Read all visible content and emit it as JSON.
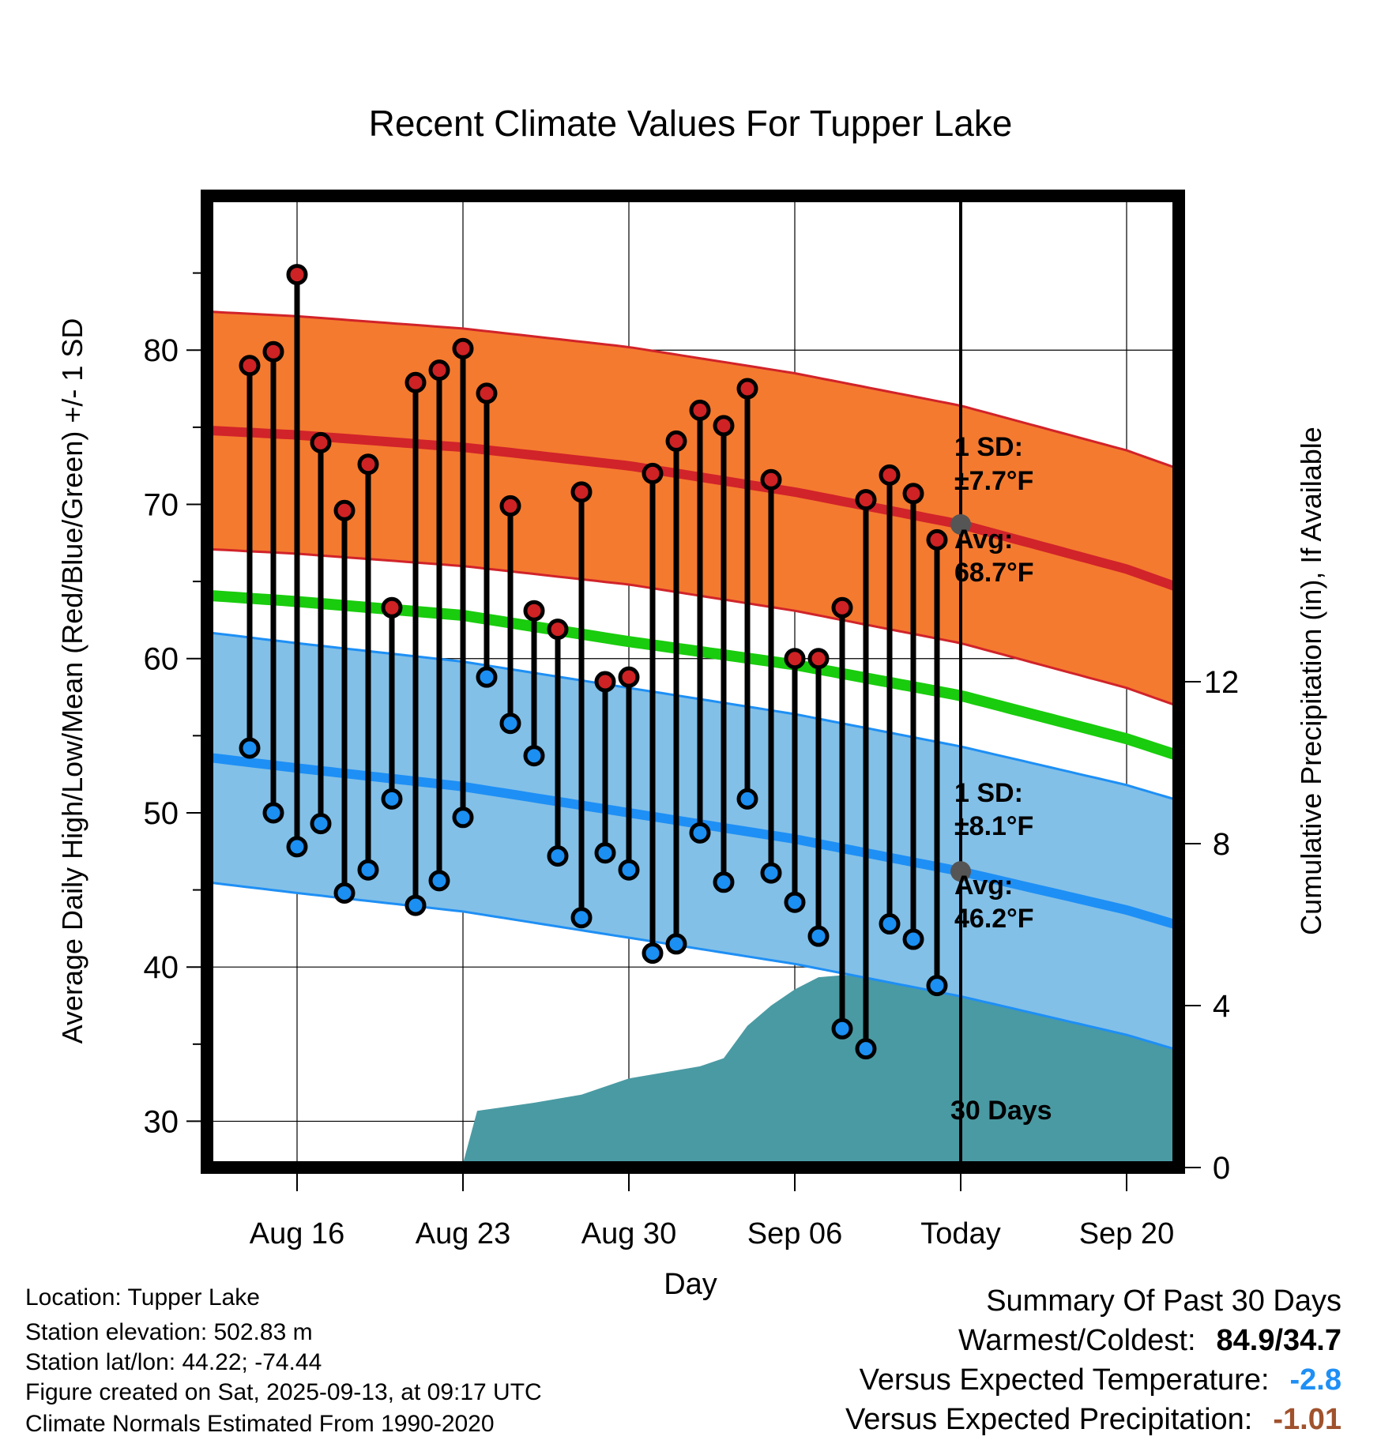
{
  "title": "Recent Climate Values For Tupper Lake",
  "chart_data": {
    "type": "climate-range",
    "title": "Recent Climate Values For Tupper Lake",
    "xlabel": "Day",
    "ylabel": "Average Daily High/Low/Mean (Red/Blue/Green) +/- 1 SD",
    "y2label": "Cumulative Precipitation (in), If Available",
    "ylim": [
      27,
      90
    ],
    "y_ticks": [
      30,
      40,
      50,
      60,
      70,
      80
    ],
    "y2lim": [
      0,
      24
    ],
    "y2_ticks": [
      0,
      4,
      8,
      12
    ],
    "xlim": [
      -1.8,
      39.2
    ],
    "x_ticks": [
      {
        "day": 2,
        "label": "Aug 16"
      },
      {
        "day": 9,
        "label": "Aug 23"
      },
      {
        "day": 16,
        "label": "Aug 30"
      },
      {
        "day": 23,
        "label": "Sep 06"
      },
      {
        "day": 30,
        "label": "Today"
      },
      {
        "day": 37,
        "label": "Sep 20"
      }
    ],
    "today_day": 30,
    "today_label": "30 Days",
    "normal_days": [
      -1.8,
      2,
      9,
      16,
      23,
      30,
      37,
      39.2
    ],
    "normal_high": [
      74.8,
      74.5,
      73.7,
      72.5,
      70.8,
      68.7,
      65.8,
      64.6
    ],
    "normal_low": [
      53.6,
      52.9,
      51.7,
      50.0,
      48.3,
      46.2,
      43.7,
      42.7
    ],
    "normal_mean": [
      64.1,
      63.7,
      62.8,
      61.1,
      59.6,
      57.6,
      54.8,
      53.7
    ],
    "high_sd": 7.7,
    "low_sd": 8.1,
    "daily": {
      "days": [
        0,
        1,
        2,
        3,
        4,
        5,
        6,
        7,
        8,
        9,
        10,
        11,
        12,
        13,
        14,
        15,
        16,
        17,
        18,
        19,
        20,
        21,
        22,
        23,
        24,
        25,
        26,
        27,
        28,
        29
      ],
      "high": [
        79.0,
        79.9,
        84.9,
        74.0,
        69.6,
        72.6,
        63.3,
        77.9,
        78.7,
        80.1,
        77.2,
        69.9,
        63.1,
        61.9,
        70.8,
        58.5,
        58.8,
        72.0,
        74.1,
        76.1,
        75.1,
        77.5,
        71.6,
        60.0,
        60.0,
        63.3,
        70.3,
        71.9,
        70.7,
        67.7
      ],
      "low": [
        54.2,
        50.0,
        47.8,
        49.3,
        44.8,
        46.3,
        50.9,
        44.0,
        45.6,
        49.7,
        58.8,
        55.8,
        53.7,
        47.2,
        43.2,
        47.4,
        46.3,
        40.9,
        41.5,
        48.7,
        45.5,
        50.9,
        46.1,
        44.2,
        42.0,
        36.0,
        34.7,
        42.8,
        41.8,
        38.8
      ]
    },
    "precip": {
      "days": [
        -1.8,
        5,
        9,
        9.6,
        12,
        13,
        14,
        15,
        16,
        17,
        18,
        19,
        20,
        21,
        22,
        23,
        24,
        25,
        26,
        27,
        28,
        29,
        30,
        39.2
      ],
      "values": [
        0,
        0,
        0.1,
        1.4,
        1.6,
        1.7,
        1.8,
        2.0,
        2.2,
        2.3,
        2.4,
        2.5,
        2.7,
        3.5,
        4.0,
        4.4,
        4.7,
        4.75,
        4.75,
        4.75,
        4.75,
        4.75,
        4.75,
        4.75
      ]
    },
    "annotations": {
      "high_sd_label": "1 SD:",
      "high_sd_value": "±7.7°F",
      "high_avg_label": "Avg:",
      "high_avg_value": "68.7°F",
      "low_sd_label": "1 SD:",
      "low_sd_value": "±8.1°F",
      "low_avg_label": "Avg:",
      "low_avg_value": "46.2°F"
    },
    "colors": {
      "high_band": "#f47a2f",
      "high_line": "#d1232a",
      "low_band": "#82c0e8",
      "low_line": "#1e8ff5",
      "mean_line": "#19cc0d",
      "precip": "#4a9aa3",
      "high_dot": "#cf2224",
      "low_dot": "#1b8ff2",
      "avg_marker": "#555555",
      "annotation_text": "#505050"
    }
  },
  "info": {
    "location": "Location: Tupper Lake",
    "elevation": "Station elevation: 502.83 m",
    "latlon": "Station lat/lon: 44.22; -74.44",
    "created": "Figure created on Sat, 2025-09-13, at 09:17 UTC",
    "normals": "Climate Normals Estimated From 1990-2020"
  },
  "summary": {
    "title": "Summary Of Past 30 Days",
    "warmest_label": "Warmest/Coldest:",
    "warmest_value": "84.9/34.7",
    "temp_label": "Versus Expected Temperature:",
    "temp_value": "-2.8",
    "temp_color": "#1e8ff5",
    "precip_label": "Versus Expected Precipitation:",
    "precip_value": "-1.01",
    "precip_color": "#a0522d"
  }
}
